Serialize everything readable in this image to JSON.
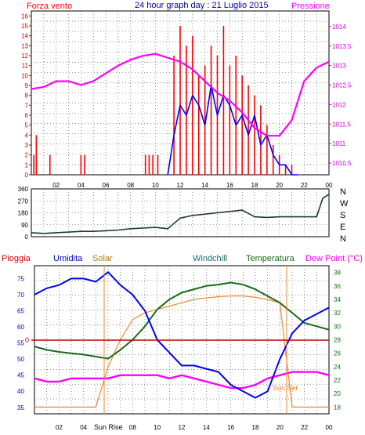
{
  "header": {
    "left_label": "Forza vento",
    "title": "24 hour graph day : 21 Luglio 2015",
    "right_label": "Pressione"
  },
  "compass": {
    "labels": [
      "N",
      "W",
      "S",
      "E",
      "N"
    ]
  },
  "bottom_header": {
    "pioggia": "Pioggia",
    "umidita": "Umidita",
    "solar": "Solar",
    "windchill": "Windchill",
    "temperatura": "Temperatura",
    "dewpoint": "Dew Point (°C)"
  },
  "markers": {
    "sunrise": "Sun Rise",
    "sunset": "Sun Set"
  },
  "colors": {
    "wind": "#ff0000",
    "gust_avg": "#0000ff",
    "pressure": "#ff00ff",
    "direction": "#1c3a3a",
    "humidity": "#0000ff",
    "solar": "#ee8833",
    "windchill": "#1a6a1a",
    "temperature": "#1a6a1a",
    "dewpoint": "#ff00ff",
    "rain": "#bb0000"
  },
  "chart_data": [
    {
      "id": "wind",
      "type": "line",
      "x_ticks": [
        "02",
        "04",
        "06",
        "08",
        "10",
        "12",
        "14",
        "16",
        "18",
        "20",
        "22",
        "00"
      ],
      "left_ticks": [
        "0",
        "1",
        "2",
        "3",
        "4",
        "5",
        "6",
        "7",
        "8",
        "9",
        "10",
        "11",
        "12",
        "13",
        "14",
        "15",
        "16"
      ],
      "right_ticks": [
        "1010.5",
        "1011",
        "1011.5",
        "1012",
        "1012.5",
        "1013",
        "1013.5",
        "1014"
      ],
      "ylim_left": [
        0,
        16.5
      ],
      "ylim_right": [
        1010.2,
        1014.4
      ],
      "series": [
        {
          "name": "Forza vento",
          "axis": "left",
          "style": "bars",
          "x": [
            0.2,
            0.4,
            1.5,
            4.0,
            4.3,
            9.2,
            9.5,
            9.8,
            10.2,
            11.5,
            12,
            12.5,
            13,
            13.5,
            14,
            14.5,
            15,
            15.5,
            16,
            16.5,
            17,
            17.5,
            18,
            18.5,
            19,
            19.5,
            20,
            20.5,
            21
          ],
          "y": [
            2,
            4,
            2,
            2,
            2,
            2,
            2,
            2,
            2,
            12,
            15,
            13,
            14,
            10,
            11,
            13,
            12,
            15,
            11,
            12,
            10,
            9,
            8,
            7,
            5,
            3,
            2,
            1,
            1
          ]
        },
        {
          "axis": "left",
          "style": "line",
          "x": [
            11,
            11.5,
            12,
            12.5,
            13,
            13.5,
            14,
            14.5,
            15,
            15.5,
            16,
            16.5,
            17,
            17.5,
            18,
            18.5,
            19,
            19.5,
            20,
            20.5,
            21,
            21.5
          ],
          "y": [
            0,
            4,
            7,
            6,
            8,
            7,
            5,
            9,
            6,
            8,
            7,
            5,
            6,
            4,
            6,
            3,
            4,
            2,
            1,
            1,
            0,
            0
          ]
        },
        {
          "name": "Pressione",
          "axis": "right",
          "x": [
            0,
            1,
            2,
            3,
            4,
            5,
            6,
            7,
            8,
            9,
            10,
            11,
            12,
            13,
            14,
            15,
            16,
            17,
            18,
            19,
            20,
            21,
            22,
            23,
            24
          ],
          "y": [
            1012.4,
            1012.45,
            1012.6,
            1012.6,
            1012.5,
            1012.6,
            1012.8,
            1013.0,
            1013.15,
            1013.25,
            1013.3,
            1013.2,
            1013.1,
            1012.9,
            1012.6,
            1012.3,
            1012.1,
            1011.8,
            1011.4,
            1011.2,
            1011.2,
            1011.6,
            1012.6,
            1012.95,
            1013.1
          ]
        }
      ]
    },
    {
      "id": "direction",
      "type": "line",
      "y_ticks": [
        "0",
        "90",
        "180",
        "270",
        "360"
      ],
      "ylim": [
        0,
        360
      ],
      "x": [
        0,
        1,
        2,
        3,
        4,
        5,
        6,
        7,
        8,
        9,
        10,
        11,
        12,
        13,
        14,
        15,
        16,
        17,
        18,
        19,
        20,
        21,
        22,
        23,
        23.5,
        24
      ],
      "y": [
        30,
        25,
        30,
        35,
        40,
        40,
        45,
        50,
        60,
        65,
        70,
        60,
        140,
        160,
        170,
        180,
        190,
        200,
        150,
        145,
        150,
        150,
        150,
        150,
        290,
        320
      ]
    },
    {
      "id": "weather",
      "type": "line",
      "left_ticks": [
        "35",
        "40",
        "45",
        "50",
        "55",
        "60",
        "65",
        "70",
        "75"
      ],
      "right_ticks": [
        "18",
        "20",
        "22",
        "24",
        "26",
        "28",
        "30",
        "32",
        "34",
        "36",
        "38"
      ],
      "ylim_left": [
        33,
        79
      ],
      "ylim_right": [
        17,
        39
      ],
      "rain_label": "0",
      "series": [
        {
          "name": "Umidita",
          "axis": "left",
          "x": [
            0,
            1,
            2,
            3,
            4,
            5,
            6,
            7,
            8,
            9,
            10,
            11,
            12,
            13,
            14,
            15,
            16,
            17,
            18,
            19,
            20,
            21,
            22,
            23,
            24
          ],
          "y": [
            70,
            72,
            73,
            75,
            75,
            74,
            77,
            73,
            70,
            65,
            56,
            52,
            48,
            48,
            47,
            46,
            42,
            40,
            38,
            40,
            50,
            58,
            62,
            64,
            66
          ]
        },
        {
          "name": "Solar",
          "axis": "right",
          "x": [
            0,
            5,
            6,
            7,
            8,
            9,
            10,
            11,
            12,
            13,
            14,
            15,
            16,
            17,
            18,
            19,
            20,
            21,
            22,
            23,
            24
          ],
          "y": [
            18,
            18,
            24,
            28,
            31,
            32,
            32.5,
            33,
            33.5,
            34,
            34.2,
            34.4,
            34.5,
            34.5,
            34.3,
            34,
            33.5,
            18,
            18,
            18,
            18
          ]
        },
        {
          "name": "Temperatura",
          "axis": "right",
          "x": [
            0,
            1,
            2,
            3,
            4,
            5,
            6,
            7,
            8,
            9,
            10,
            11,
            12,
            13,
            14,
            15,
            16,
            17,
            18,
            19,
            20,
            21,
            22,
            23,
            24
          ],
          "y": [
            27,
            26.5,
            26.2,
            26,
            25.8,
            25.5,
            25.2,
            26.5,
            28,
            30,
            32.5,
            34,
            35,
            35.5,
            36,
            36.2,
            36.5,
            36.2,
            35.5,
            34.5,
            33.5,
            32,
            30.5,
            30,
            29.5
          ]
        },
        {
          "name": "Dew Point",
          "axis": "left",
          "x": [
            0,
            1,
            2,
            3,
            4,
            5,
            6,
            7,
            8,
            9,
            10,
            11,
            12,
            13,
            14,
            15,
            16,
            17,
            18,
            19,
            20,
            21,
            22,
            23,
            24
          ],
          "y": [
            44,
            43,
            43,
            44,
            44,
            44,
            44,
            45,
            45,
            45,
            45,
            44,
            45,
            44,
            43,
            42,
            41,
            41,
            42,
            44,
            45,
            46,
            46,
            46,
            45
          ]
        }
      ]
    }
  ]
}
